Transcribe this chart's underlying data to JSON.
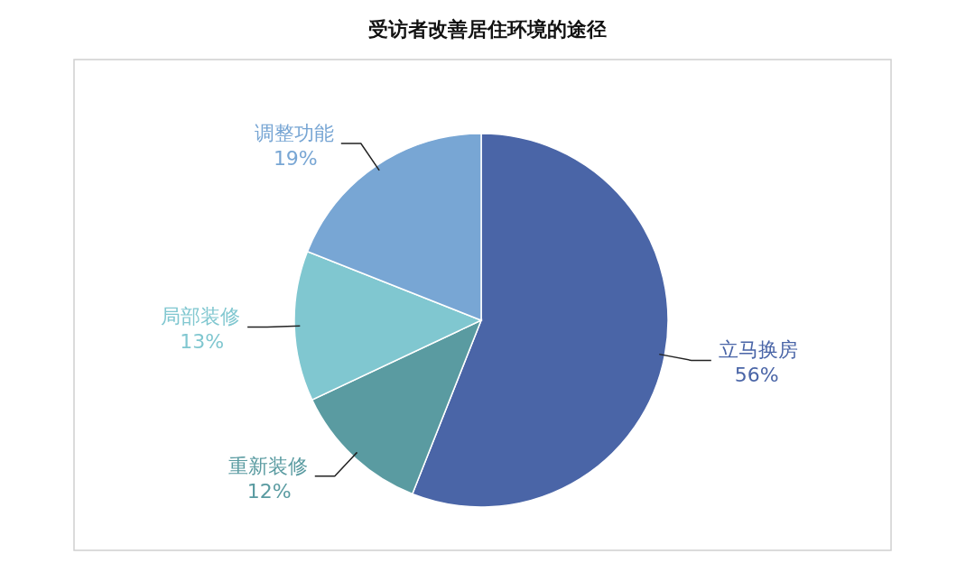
{
  "chart_data": {
    "type": "pie",
    "title": "受访者改善居住环境的途径",
    "categories": [
      "立马换房",
      "重新装修",
      "局部装修",
      "调整功能"
    ],
    "values": [
      56,
      12,
      13,
      19
    ],
    "value_labels": [
      "56%",
      "12%",
      "13%",
      "19%"
    ],
    "colors": [
      "#4a65a7",
      "#5a9ba1",
      "#80c7d0",
      "#78a6d4"
    ]
  }
}
